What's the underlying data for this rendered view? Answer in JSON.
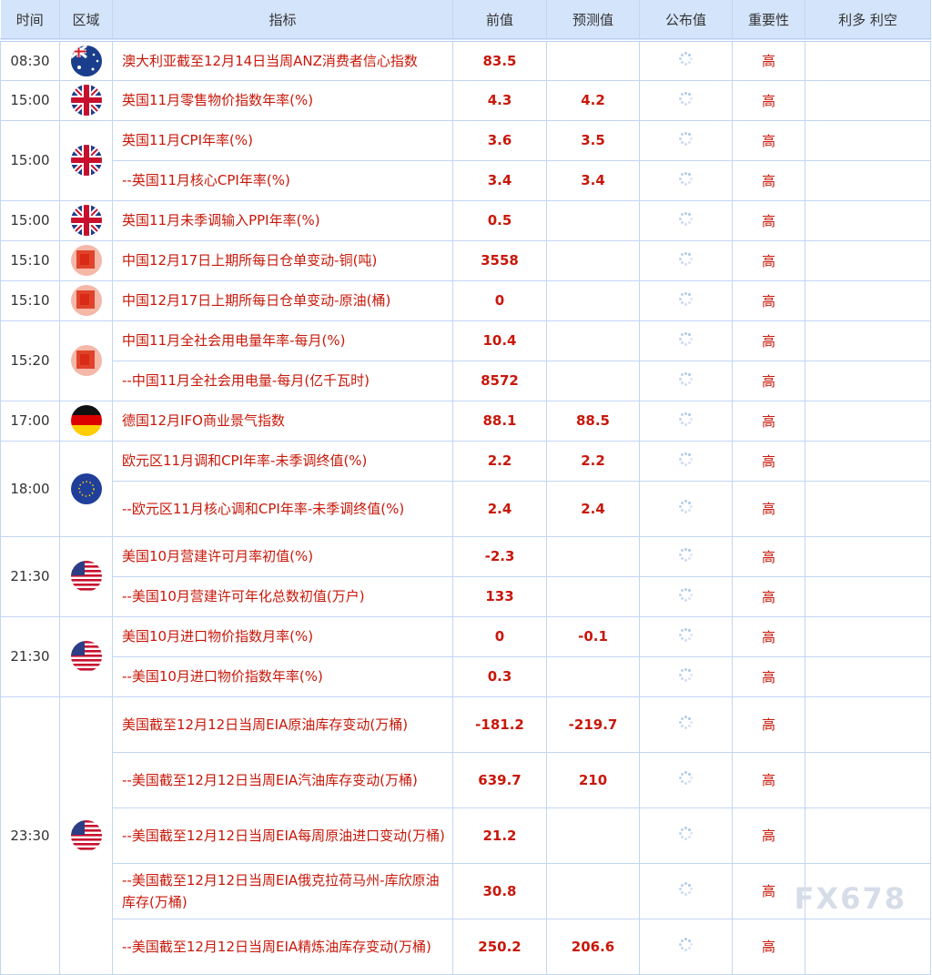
{
  "headers": [
    "时间",
    "区域",
    "指标",
    "前值",
    "预测值",
    "公布值",
    "重要性",
    "利多 利空"
  ],
  "watermark": "FX678",
  "groups": [
    {
      "time": "08:30",
      "flag": "australia",
      "rows": [
        {
          "indicator": "澳大利亚截至12月14日当周ANZ消费者信心指数",
          "prev": "83.5",
          "forecast": "",
          "importance": "高"
        }
      ]
    },
    {
      "time": "15:00",
      "flag": "uk",
      "rows": [
        {
          "indicator": "英国11月零售物价指数年率(%)",
          "prev": "4.3",
          "forecast": "4.2",
          "importance": "高"
        }
      ]
    },
    {
      "time": "15:00",
      "flag": "uk",
      "rows": [
        {
          "indicator": "英国11月CPI年率(%)",
          "prev": "3.6",
          "forecast": "3.5",
          "importance": "高"
        },
        {
          "indicator": "--英国11月核心CPI年率(%)",
          "prev": "3.4",
          "forecast": "3.4",
          "importance": "高"
        }
      ]
    },
    {
      "time": "15:00",
      "flag": "uk",
      "rows": [
        {
          "indicator": "英国11月未季调输入PPI年率(%)",
          "prev": "0.5",
          "forecast": "",
          "importance": "高"
        }
      ]
    },
    {
      "time": "15:10",
      "flag": "china",
      "rows": [
        {
          "indicator": "中国12月17日上期所每日仓单变动-铜(吨)",
          "prev": "3558",
          "forecast": "",
          "importance": "高"
        }
      ]
    },
    {
      "time": "15:10",
      "flag": "china",
      "rows": [
        {
          "indicator": "中国12月17日上期所每日仓单变动-原油(桶)",
          "prev": "0",
          "forecast": "",
          "importance": "高"
        }
      ]
    },
    {
      "time": "15:20",
      "flag": "china",
      "rows": [
        {
          "indicator": "中国11月全社会用电量年率-每月(%)",
          "prev": "10.4",
          "forecast": "",
          "importance": "高"
        },
        {
          "indicator": "--中国11月全社会用电量-每月(亿千瓦时)",
          "prev": "8572",
          "forecast": "",
          "importance": "高"
        }
      ]
    },
    {
      "time": "17:00",
      "flag": "germany",
      "rows": [
        {
          "indicator": "德国12月IFO商业景气指数",
          "prev": "88.1",
          "forecast": "88.5",
          "importance": "高"
        }
      ]
    },
    {
      "time": "18:00",
      "flag": "eurozone",
      "rows": [
        {
          "indicator": "欧元区11月调和CPI年率-未季调终值(%)",
          "prev": "2.2",
          "forecast": "2.2",
          "importance": "高"
        },
        {
          "indicator": "--欧元区11月核心调和CPI年率-未季调终值(%)",
          "prev": "2.4",
          "forecast": "2.4",
          "importance": "高"
        }
      ]
    },
    {
      "time": "21:30",
      "flag": "usa",
      "rows": [
        {
          "indicator": "美国10月营建许可月率初值(%)",
          "prev": "-2.3",
          "forecast": "",
          "importance": "高"
        },
        {
          "indicator": "--美国10月营建许可年化总数初值(万户)",
          "prev": "133",
          "forecast": "",
          "importance": "高"
        }
      ]
    },
    {
      "time": "21:30",
      "flag": "usa",
      "rows": [
        {
          "indicator": "美国10月进口物价指数月率(%)",
          "prev": "0",
          "forecast": "-0.1",
          "importance": "高"
        },
        {
          "indicator": "--美国10月进口物价指数年率(%)",
          "prev": "0.3",
          "forecast": "",
          "importance": "高"
        }
      ]
    },
    {
      "time": "23:30",
      "flag": "usa",
      "rows": [
        {
          "indicator": "美国截至12月12日当周EIA原油库存变动(万桶)",
          "prev": "-181.2",
          "forecast": "-219.7",
          "importance": "高"
        },
        {
          "indicator": "--美国截至12月12日当周EIA汽油库存变动(万桶)",
          "prev": "639.7",
          "forecast": "210",
          "importance": "高"
        },
        {
          "indicator": "--美国截至12月12日当周EIA每周原油进口变动(万桶)",
          "prev": "21.2",
          "forecast": "",
          "importance": "高"
        },
        {
          "indicator": "--美国截至12月12日当周EIA俄克拉荷马州-库欣原油库存(万桶)",
          "prev": "30.8",
          "forecast": "",
          "importance": "高"
        },
        {
          "indicator": "--美国截至12月12日当周EIA精炼油库存变动(万桶)",
          "prev": "250.2",
          "forecast": "206.6",
          "importance": "高"
        }
      ]
    }
  ]
}
